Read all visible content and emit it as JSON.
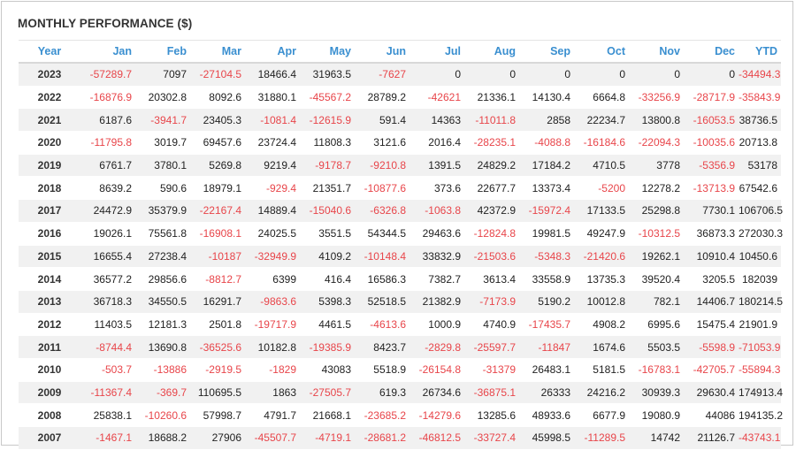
{
  "title": "MONTHLY PERFORMANCE ($)",
  "columns": [
    "Year",
    "Jan",
    "Feb",
    "Mar",
    "Apr",
    "May",
    "Jun",
    "Jul",
    "Aug",
    "Sep",
    "Oct",
    "Nov",
    "Dec",
    "YTD"
  ],
  "colors": {
    "header_text": "#3a8fd0",
    "negative": "#e8454a",
    "positive": "#222222",
    "stripe": "#f1f1f1"
  },
  "rows": [
    {
      "year": "2023",
      "values": [
        "-57289.7",
        "7097",
        "-27104.5",
        "18466.4",
        "31963.5",
        "-7627",
        "0",
        "0",
        "0",
        "0",
        "0",
        "0",
        "-34494.3"
      ]
    },
    {
      "year": "2022",
      "values": [
        "-16876.9",
        "20302.8",
        "8092.6",
        "31880.1",
        "-45567.2",
        "28789.2",
        "-42621",
        "21336.1",
        "14130.4",
        "6664.8",
        "-33256.9",
        "-28717.9",
        "-35843.9"
      ]
    },
    {
      "year": "2021",
      "values": [
        "6187.6",
        "-3941.7",
        "23405.3",
        "-1081.4",
        "-12615.9",
        "591.4",
        "14363",
        "-11011.8",
        "2858",
        "22234.7",
        "13800.8",
        "-16053.5",
        "38736.5"
      ]
    },
    {
      "year": "2020",
      "values": [
        "-11795.8",
        "3019.7",
        "69457.6",
        "23724.4",
        "11808.3",
        "3121.6",
        "2016.4",
        "-28235.1",
        "-4088.8",
        "-16184.6",
        "-22094.3",
        "-10035.6",
        "20713.8"
      ]
    },
    {
      "year": "2019",
      "values": [
        "6761.7",
        "3780.1",
        "5269.8",
        "9219.4",
        "-9178.7",
        "-9210.8",
        "1391.5",
        "24829.2",
        "17184.2",
        "4710.5",
        "3778",
        "-5356.9",
        "53178"
      ]
    },
    {
      "year": "2018",
      "values": [
        "8639.2",
        "590.6",
        "18979.1",
        "-929.4",
        "21351.7",
        "-10877.6",
        "373.6",
        "22677.7",
        "13373.4",
        "-5200",
        "12278.2",
        "-13713.9",
        "67542.6"
      ]
    },
    {
      "year": "2017",
      "values": [
        "24472.9",
        "35379.9",
        "-22167.4",
        "14889.4",
        "-15040.6",
        "-6326.8",
        "-1063.8",
        "42372.9",
        "-15972.4",
        "17133.5",
        "25298.8",
        "7730.1",
        "106706.5"
      ]
    },
    {
      "year": "2016",
      "values": [
        "19026.1",
        "75561.8",
        "-16908.1",
        "24025.5",
        "3551.5",
        "54344.5",
        "29463.6",
        "-12824.8",
        "19981.5",
        "49247.9",
        "-10312.5",
        "36873.3",
        "272030.3"
      ]
    },
    {
      "year": "2015",
      "values": [
        "16655.4",
        "27238.4",
        "-10187",
        "-32949.9",
        "4109.2",
        "-10148.4",
        "33832.9",
        "-21503.6",
        "-5348.3",
        "-21420.6",
        "19262.1",
        "10910.4",
        "10450.6"
      ]
    },
    {
      "year": "2014",
      "values": [
        "36577.2",
        "29856.6",
        "-8812.7",
        "6399",
        "416.4",
        "16586.3",
        "7382.7",
        "3613.4",
        "33558.9",
        "13735.3",
        "39520.4",
        "3205.5",
        "182039"
      ]
    },
    {
      "year": "2013",
      "values": [
        "36718.3",
        "34550.5",
        "16291.7",
        "-9863.6",
        "5398.3",
        "52518.5",
        "21382.9",
        "-7173.9",
        "5190.2",
        "10012.8",
        "782.1",
        "14406.7",
        "180214.5"
      ]
    },
    {
      "year": "2012",
      "values": [
        "11403.5",
        "12181.3",
        "2501.8",
        "-19717.9",
        "4461.5",
        "-4613.6",
        "1000.9",
        "4740.9",
        "-17435.7",
        "4908.2",
        "6995.6",
        "15475.4",
        "21901.9"
      ]
    },
    {
      "year": "2011",
      "values": [
        "-8744.4",
        "13690.8",
        "-36525.6",
        "10182.8",
        "-19385.9",
        "8423.7",
        "-2829.8",
        "-25597.7",
        "-11847",
        "1674.6",
        "5503.5",
        "-5598.9",
        "-71053.9"
      ]
    },
    {
      "year": "2010",
      "values": [
        "-503.7",
        "-13886",
        "-2919.5",
        "-1829",
        "43083",
        "5518.9",
        "-26154.8",
        "-31379",
        "26483.1",
        "5181.5",
        "-16783.1",
        "-42705.7",
        "-55894.3"
      ]
    },
    {
      "year": "2009",
      "values": [
        "-11367.4",
        "-369.7",
        "110695.5",
        "1863",
        "-27505.7",
        "619.3",
        "26734.6",
        "-36875.1",
        "26333",
        "24216.2",
        "30939.3",
        "29630.4",
        "174913.4"
      ]
    },
    {
      "year": "2008",
      "values": [
        "25838.1",
        "-10260.6",
        "57998.7",
        "4791.7",
        "21668.1",
        "-23685.2",
        "-14279.6",
        "13285.6",
        "48933.6",
        "6677.9",
        "19080.9",
        "44086",
        "194135.2"
      ]
    },
    {
      "year": "2007",
      "values": [
        "-1467.1",
        "18688.2",
        "27906",
        "-45507.7",
        "-4719.1",
        "-28681.2",
        "-46812.5",
        "-33727.4",
        "45998.5",
        "-11289.5",
        "14742",
        "21126.7",
        "-43743.1"
      ]
    }
  ]
}
